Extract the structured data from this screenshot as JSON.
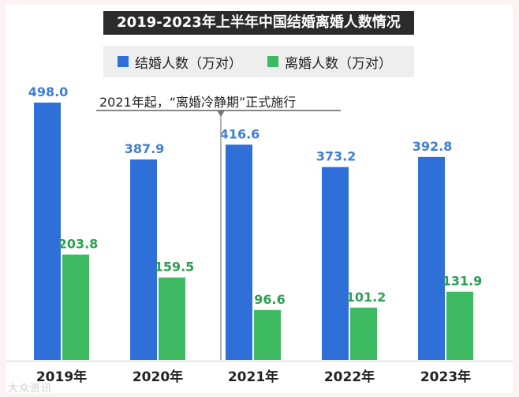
{
  "chart_data": {
    "type": "bar",
    "title": "2019-2023年上半年中国结婚离婚人数情况",
    "categories": [
      "2019年",
      "2020年",
      "2021年",
      "2022年",
      "2023年"
    ],
    "series": [
      {
        "name": "结婚人数（万对）",
        "color": "#2f6fd8",
        "label_color": "#3f7fd6",
        "values": [
          498.0,
          387.9,
          416.6,
          373.2,
          392.8
        ]
      },
      {
        "name": "离婚人数（万对）",
        "color": "#3dba62",
        "label_color": "#2e9e52",
        "values": [
          203.8,
          159.5,
          96.6,
          101.2,
          131.9
        ]
      }
    ],
    "value_labels": [
      [
        "498.0",
        "387.9",
        "416.6",
        "373.2",
        "392.8"
      ],
      [
        "203.8",
        "159.5",
        "96.6",
        "101.2",
        "131.9"
      ]
    ],
    "annotation": "2021年起，“离婚冷静期”正式施行",
    "annotation_category": "2021年",
    "ylim": [
      0,
      520
    ],
    "xlabel": "",
    "ylabel": ""
  },
  "watermark": "大众资讯"
}
